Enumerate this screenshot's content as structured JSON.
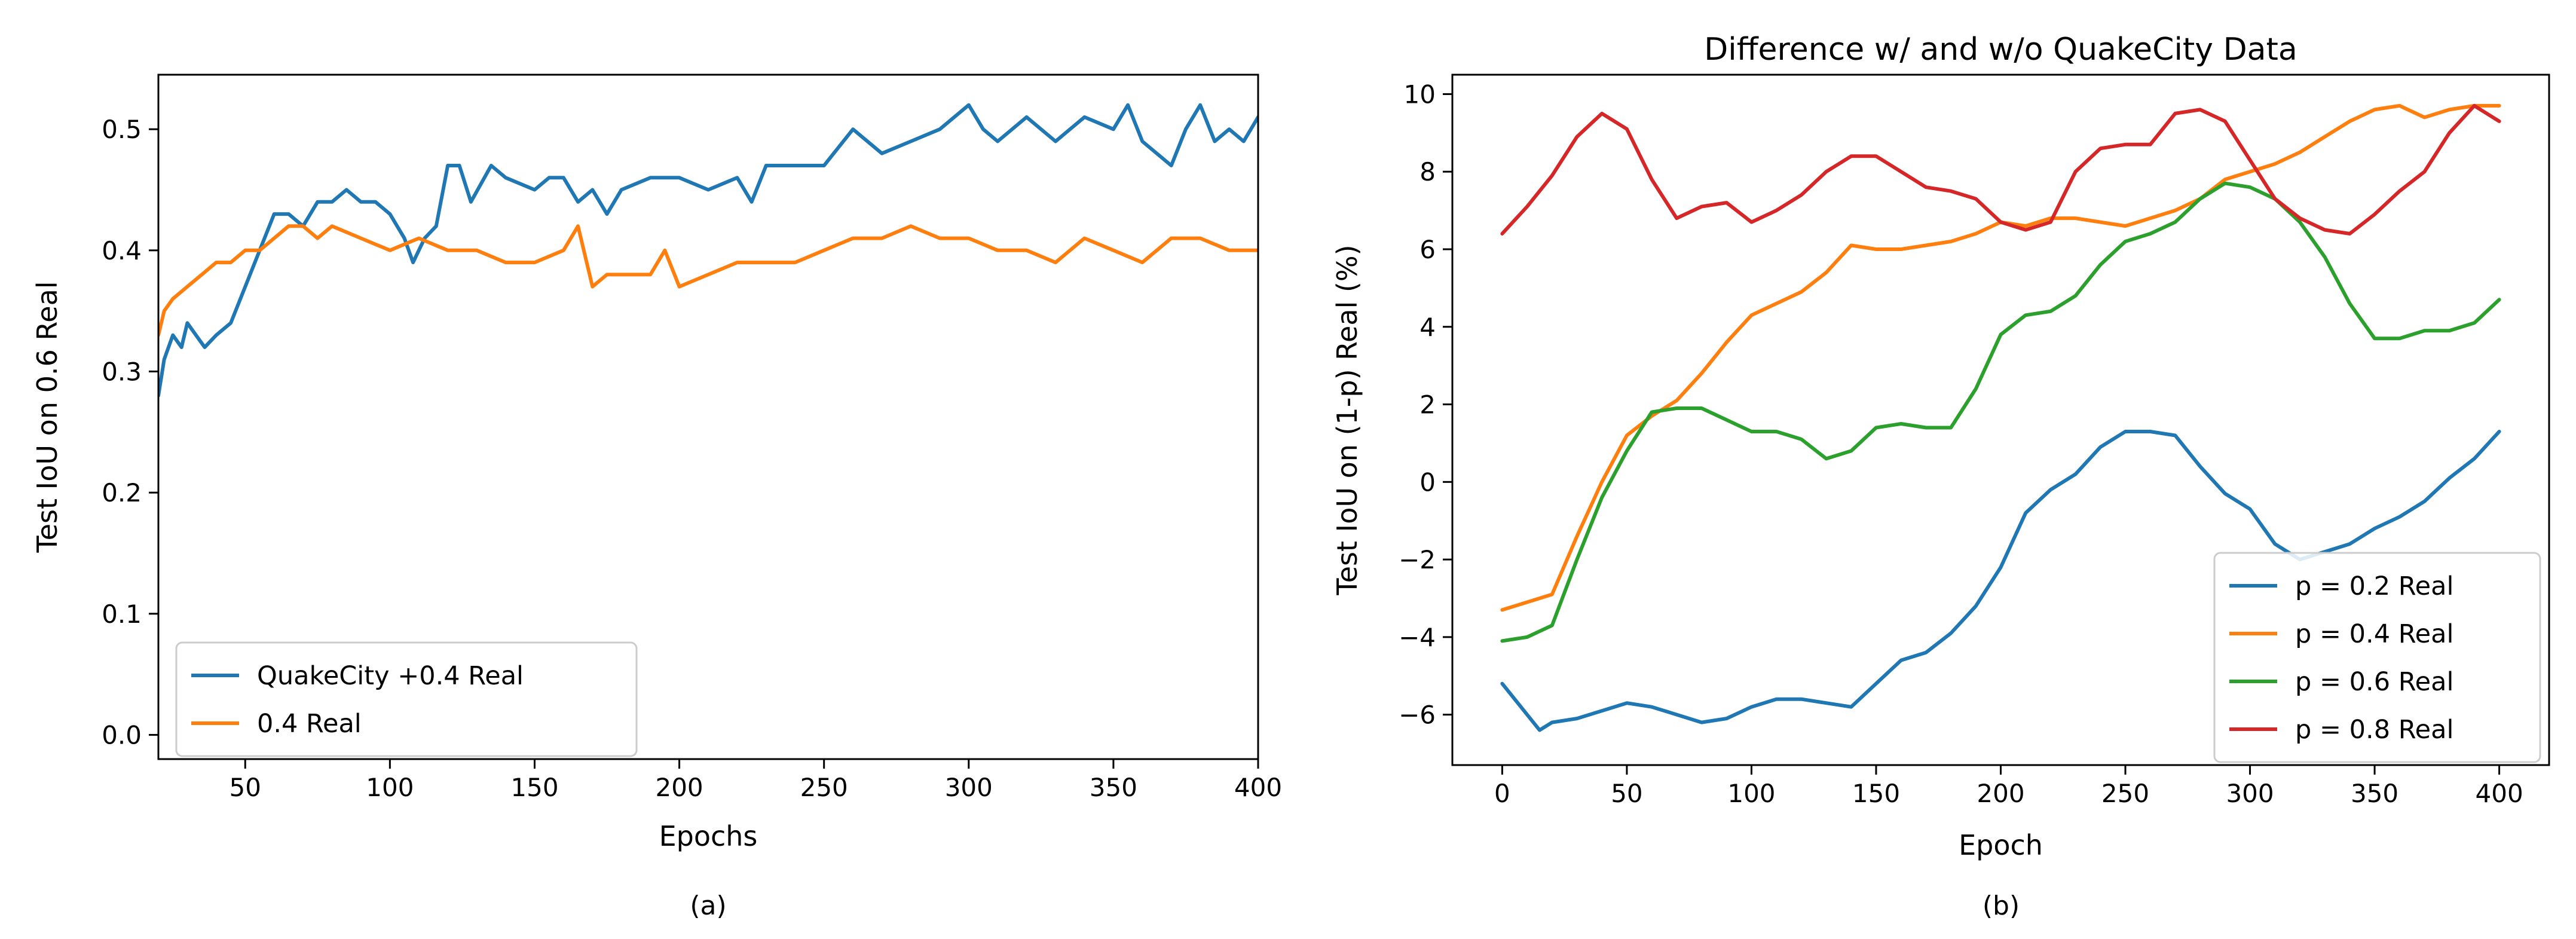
{
  "chart_data": [
    {
      "type": "line",
      "caption": "(a)",
      "title": "",
      "xlabel": "Epochs",
      "ylabel": "Test IoU on 0.6 Real",
      "xlim": [
        20,
        400
      ],
      "ylim": [
        -0.02,
        0.545
      ],
      "xticks": [
        50,
        100,
        150,
        200,
        250,
        300,
        350,
        400
      ],
      "yticks": [
        0.0,
        0.1,
        0.2,
        0.3,
        0.4,
        0.5
      ],
      "ytick_labels": [
        "0.0",
        "0.1",
        "0.2",
        "0.3",
        "0.4",
        "0.5"
      ],
      "legend_position": "lower-left",
      "series": [
        {
          "name": "QuakeCity +0.4 Real",
          "color": "#1f77b4",
          "x": [
            20,
            22,
            25,
            28,
            30,
            33,
            36,
            40,
            45,
            50,
            55,
            60,
            65,
            70,
            75,
            80,
            85,
            90,
            95,
            100,
            105,
            108,
            112,
            116,
            120,
            124,
            128,
            135,
            140,
            150,
            155,
            160,
            165,
            170,
            175,
            180,
            190,
            200,
            210,
            220,
            225,
            230,
            240,
            250,
            260,
            270,
            280,
            290,
            300,
            305,
            310,
            320,
            330,
            340,
            350,
            355,
            360,
            370,
            375,
            380,
            385,
            390,
            395,
            400
          ],
          "values": [
            0.28,
            0.31,
            0.33,
            0.32,
            0.34,
            0.33,
            0.32,
            0.33,
            0.34,
            0.37,
            0.4,
            0.43,
            0.43,
            0.42,
            0.44,
            0.44,
            0.45,
            0.44,
            0.44,
            0.43,
            0.41,
            0.39,
            0.41,
            0.42,
            0.47,
            0.47,
            0.44,
            0.47,
            0.46,
            0.45,
            0.46,
            0.46,
            0.44,
            0.45,
            0.43,
            0.45,
            0.46,
            0.46,
            0.45,
            0.46,
            0.44,
            0.47,
            0.47,
            0.47,
            0.5,
            0.48,
            0.49,
            0.5,
            0.52,
            0.5,
            0.49,
            0.51,
            0.49,
            0.51,
            0.5,
            0.52,
            0.49,
            0.47,
            0.5,
            0.52,
            0.49,
            0.5,
            0.49,
            0.51
          ]
        },
        {
          "name": "0.4 Real",
          "color": "#ff7f0e",
          "x": [
            20,
            22,
            25,
            30,
            35,
            40,
            45,
            50,
            55,
            60,
            65,
            70,
            75,
            80,
            90,
            100,
            110,
            120,
            130,
            140,
            150,
            160,
            165,
            170,
            175,
            180,
            190,
            195,
            200,
            210,
            220,
            230,
            240,
            250,
            260,
            270,
            280,
            290,
            300,
            310,
            320,
            330,
            340,
            350,
            360,
            370,
            380,
            390,
            400
          ],
          "values": [
            0.33,
            0.35,
            0.36,
            0.37,
            0.38,
            0.39,
            0.39,
            0.4,
            0.4,
            0.41,
            0.42,
            0.42,
            0.41,
            0.42,
            0.41,
            0.4,
            0.41,
            0.4,
            0.4,
            0.39,
            0.39,
            0.4,
            0.42,
            0.37,
            0.38,
            0.38,
            0.38,
            0.4,
            0.37,
            0.38,
            0.39,
            0.39,
            0.39,
            0.4,
            0.41,
            0.41,
            0.42,
            0.41,
            0.41,
            0.4,
            0.4,
            0.39,
            0.41,
            0.4,
            0.39,
            0.41,
            0.41,
            0.4,
            0.4
          ]
        }
      ]
    },
    {
      "type": "line",
      "caption": "(b)",
      "title": "Difference w/ and w/o QuakeCity Data",
      "xlabel": "Epoch",
      "ylabel": "Test IoU on (1-p) Real (%)",
      "xlim": [
        -20,
        420
      ],
      "ylim": [
        -7.3,
        10.5
      ],
      "xticks": [
        0,
        50,
        100,
        150,
        200,
        250,
        300,
        350,
        400
      ],
      "yticks": [
        -6,
        -4,
        -2,
        0,
        2,
        4,
        6,
        8,
        10
      ],
      "ytick_labels": [
        "−6",
        "−4",
        "−2",
        "0",
        "2",
        "4",
        "6",
        "8",
        "10"
      ],
      "legend_position": "lower-right",
      "series": [
        {
          "name": "p = 0.2 Real",
          "color": "#1f77b4",
          "x": [
            0,
            10,
            15,
            20,
            30,
            40,
            50,
            60,
            70,
            80,
            90,
            100,
            110,
            120,
            130,
            140,
            150,
            160,
            170,
            180,
            190,
            200,
            210,
            220,
            230,
            240,
            250,
            260,
            270,
            280,
            290,
            300,
            310,
            320,
            330,
            340,
            350,
            360,
            370,
            380,
            390,
            400
          ],
          "values": [
            -5.2,
            -6.0,
            -6.4,
            -6.2,
            -6.1,
            -5.9,
            -5.7,
            -5.8,
            -6.0,
            -6.2,
            -6.1,
            -5.8,
            -5.6,
            -5.6,
            -5.7,
            -5.8,
            -5.2,
            -4.6,
            -4.4,
            -3.9,
            -3.2,
            -2.2,
            -0.8,
            -0.2,
            0.2,
            0.9,
            1.3,
            1.3,
            1.2,
            0.4,
            -0.3,
            -0.7,
            -1.6,
            -2.0,
            -1.8,
            -1.6,
            -1.2,
            -0.9,
            -0.5,
            0.1,
            0.6,
            1.3
          ]
        },
        {
          "name": "p = 0.4 Real",
          "color": "#ff7f0e",
          "x": [
            0,
            10,
            20,
            30,
            40,
            50,
            60,
            70,
            80,
            90,
            100,
            110,
            120,
            130,
            140,
            150,
            160,
            170,
            180,
            190,
            200,
            210,
            220,
            230,
            240,
            250,
            260,
            270,
            280,
            290,
            300,
            310,
            320,
            330,
            340,
            350,
            360,
            370,
            380,
            390,
            400
          ],
          "values": [
            -3.3,
            -3.1,
            -2.9,
            -1.4,
            0.0,
            1.2,
            1.7,
            2.1,
            2.8,
            3.6,
            4.3,
            4.6,
            4.9,
            5.4,
            6.1,
            6.0,
            6.0,
            6.1,
            6.2,
            6.4,
            6.7,
            6.6,
            6.8,
            6.8,
            6.7,
            6.6,
            6.8,
            7.0,
            7.3,
            7.8,
            8.0,
            8.2,
            8.5,
            8.9,
            9.3,
            9.6,
            9.7,
            9.4,
            9.6,
            9.7,
            9.7
          ]
        },
        {
          "name": "p = 0.6 Real",
          "color": "#2ca02c",
          "x": [
            0,
            10,
            20,
            30,
            40,
            50,
            60,
            70,
            80,
            90,
            100,
            110,
            120,
            130,
            140,
            150,
            160,
            170,
            180,
            190,
            200,
            210,
            220,
            230,
            240,
            250,
            260,
            270,
            280,
            290,
            300,
            310,
            320,
            330,
            340,
            350,
            360,
            370,
            380,
            390,
            400
          ],
          "values": [
            -4.1,
            -4.0,
            -3.7,
            -2.0,
            -0.4,
            0.8,
            1.8,
            1.9,
            1.9,
            1.6,
            1.3,
            1.3,
            1.1,
            0.6,
            0.8,
            1.4,
            1.5,
            1.4,
            1.4,
            2.4,
            3.8,
            4.3,
            4.4,
            4.8,
            5.6,
            6.2,
            6.4,
            6.7,
            7.3,
            7.7,
            7.6,
            7.3,
            6.7,
            5.8,
            4.6,
            3.7,
            3.7,
            3.9,
            3.9,
            4.1,
            4.7
          ]
        },
        {
          "name": "p = 0.8 Real",
          "color": "#d62728",
          "x": [
            0,
            10,
            20,
            30,
            40,
            50,
            60,
            70,
            80,
            90,
            100,
            110,
            120,
            130,
            140,
            150,
            160,
            170,
            180,
            190,
            200,
            210,
            220,
            230,
            240,
            250,
            260,
            270,
            280,
            290,
            300,
            310,
            320,
            330,
            340,
            350,
            360,
            370,
            380,
            390,
            400
          ],
          "values": [
            6.4,
            7.1,
            7.9,
            8.9,
            9.5,
            9.1,
            7.8,
            6.8,
            7.1,
            7.2,
            6.7,
            7.0,
            7.4,
            8.0,
            8.4,
            8.4,
            8.0,
            7.6,
            7.5,
            7.3,
            6.7,
            6.5,
            6.7,
            8.0,
            8.6,
            8.7,
            8.7,
            9.5,
            9.6,
            9.3,
            8.3,
            7.3,
            6.8,
            6.5,
            6.4,
            6.9,
            7.5,
            8.0,
            9.0,
            9.7,
            9.3
          ]
        }
      ]
    }
  ]
}
